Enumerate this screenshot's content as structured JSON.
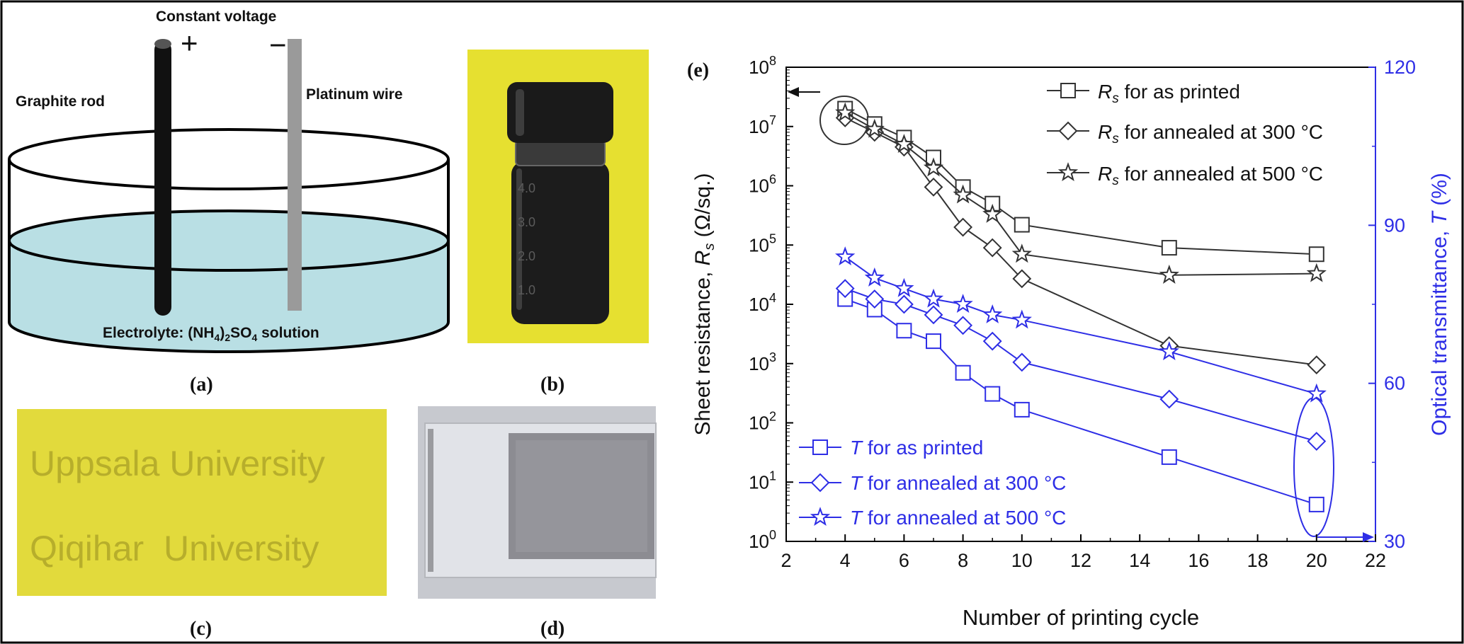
{
  "panels": {
    "a": {
      "label": "(a)",
      "title": "Constant voltage",
      "plus": "+",
      "minus": "−",
      "left_electrode": "Graphite rod",
      "right_electrode": "Platinum wire",
      "electrolyte_prefix": "Electrolyte: (NH",
      "electrolyte_sub1": "4",
      "electrolyte_mid": ")",
      "electrolyte_sub2": "2",
      "electrolyte_suffix": "SO",
      "electrolyte_sub3": "4",
      "electrolyte_end": " solution",
      "colors": {
        "solution": "#b9dfe4",
        "rod": "#111111",
        "wire": "#9a9a9a"
      }
    },
    "b": {
      "label": "(b)",
      "vial_marks": [
        "4.0",
        "3.0",
        "2.0",
        "1.0"
      ],
      "colors": {
        "background": "#e6e030",
        "cap": "#1a1a1a",
        "liquid": "#1c1c1c"
      }
    },
    "c": {
      "label": "(c)",
      "lines": [
        "Uppsala University",
        "Qiqihar  University"
      ],
      "colors": {
        "background": "#e2da3c",
        "text": "#a89f25"
      }
    },
    "d": {
      "label": "(d)",
      "colors": {
        "background": "#c7c9cf",
        "film": "#8c8c92"
      }
    }
  },
  "chart_data": {
    "type": "line",
    "panel_label": "(e)",
    "xlabel": "Number of printing cycle",
    "ylabel_left": "Sheet resistance, R_s (Ω/sq.)",
    "ylabel_right": "Optical transmittance, T (%)",
    "x_ticks": [
      2,
      4,
      6,
      8,
      10,
      12,
      14,
      16,
      18,
      20,
      22
    ],
    "xlim": [
      2,
      22
    ],
    "y_left": {
      "scale": "log",
      "range": [
        1,
        100000000
      ],
      "tick_labels": [
        "10^0",
        "10^1",
        "10^2",
        "10^3",
        "10^4",
        "10^5",
        "10^6",
        "10^7",
        "10^8"
      ]
    },
    "y_right": {
      "scale": "linear",
      "range": [
        30,
        120
      ],
      "ticks": [
        30,
        60,
        90,
        120
      ]
    },
    "x": [
      4,
      5,
      6,
      7,
      8,
      9,
      10,
      15,
      20
    ],
    "series": [
      {
        "name": "R_s for as printed",
        "axis": "left",
        "marker": "square",
        "color": "#333333",
        "values": [
          20000000,
          11000000,
          6500000,
          3000000,
          950000,
          500000,
          220000,
          90000,
          70000
        ]
      },
      {
        "name": "R_s for annealed at 300 °C",
        "axis": "left",
        "marker": "diamond",
        "color": "#333333",
        "values": [
          14000000,
          8000000,
          4500000,
          950000,
          200000,
          90000,
          27000,
          2000,
          950
        ]
      },
      {
        "name": "R_s for annealed at 500 °C",
        "axis": "left",
        "marker": "star",
        "color": "#333333",
        "values": [
          17000000,
          9000000,
          5000000,
          2000000,
          700000,
          330000,
          70000,
          31000,
          33000
        ]
      },
      {
        "name": "T for as printed",
        "axis": "right",
        "marker": "square",
        "color": "#2e2ee6",
        "values": [
          76,
          74,
          70,
          68,
          62,
          58,
          55,
          46,
          37
        ]
      },
      {
        "name": "T for annealed at 300 °C",
        "axis": "right",
        "marker": "diamond",
        "color": "#2e2ee6",
        "values": [
          78,
          76,
          75,
          73,
          71,
          68,
          64,
          57,
          49
        ]
      },
      {
        "name": "T for annealed at 500 °C",
        "axis": "right",
        "marker": "star",
        "color": "#2e2ee6",
        "values": [
          84,
          80,
          78,
          76,
          75,
          73,
          72,
          66,
          58
        ]
      }
    ],
    "legend_placement": "top-right and bottom-left",
    "annotations": [
      "circle around x=4 points with arrow pointing to left axis",
      "ellipse around x=20 T points with arrow pointing to right axis"
    ],
    "grid": false,
    "colors": {
      "left_axis": "#000000",
      "right_axis": "#2e2ee6"
    }
  }
}
